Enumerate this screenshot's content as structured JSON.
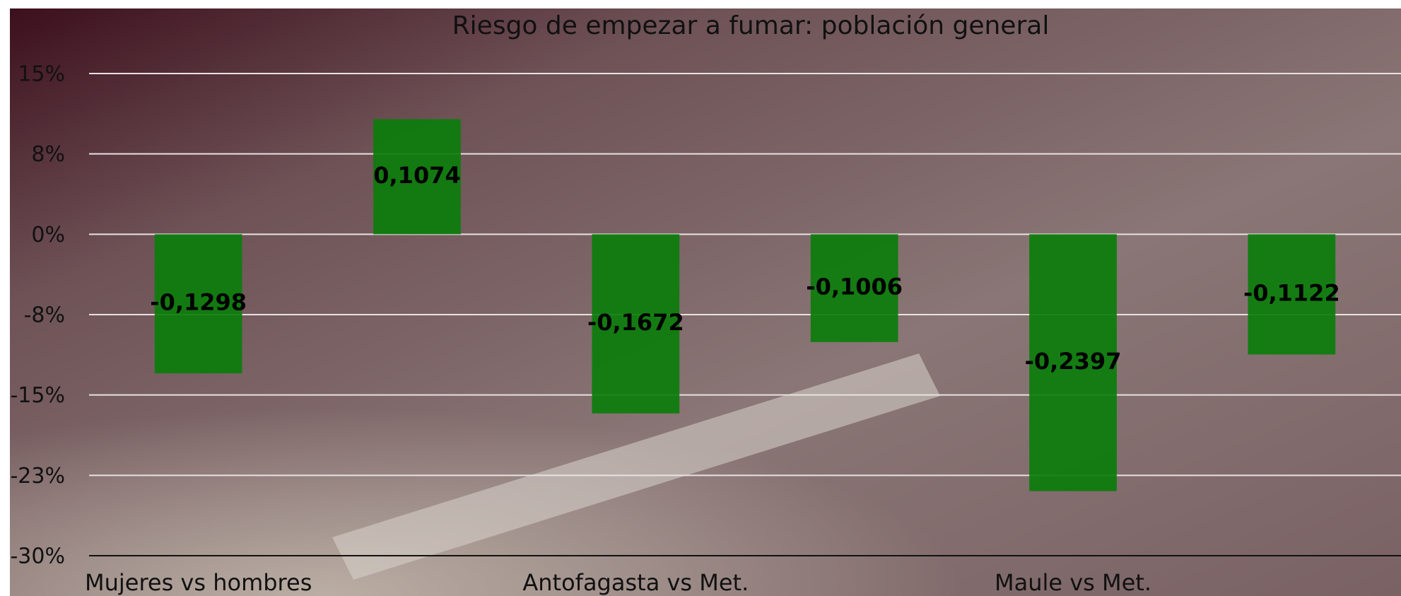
{
  "chart_data": {
    "type": "bar",
    "title": "Riesgo de empezar a fumar: población general",
    "categories": [
      "Mujeres vs hombres",
      null,
      "Antofagasta vs Met.",
      null,
      "Maule vs Met.",
      null
    ],
    "values": [
      -0.1298,
      0.1074,
      -0.1672,
      -0.1006,
      -0.2397,
      -0.1122
    ],
    "value_labels": [
      "-0,1298",
      "0,1074",
      "-0,1672",
      "-0,1006",
      "-0,2397",
      "-0,1122"
    ],
    "color": "#0b7d0b",
    "ylim": [
      -0.3,
      0.15
    ],
    "yticks": [
      {
        "value": 0.15,
        "label": "15%"
      },
      {
        "value": 0.075,
        "label": "8%"
      },
      {
        "value": 0,
        "label": "0%"
      },
      {
        "value": -0.075,
        "label": "-8%"
      },
      {
        "value": -0.15,
        "label": "-15%"
      },
      {
        "value": -0.225,
        "label": "-23%"
      },
      {
        "value": -0.3,
        "label": "-30%"
      }
    ],
    "grid": true
  }
}
